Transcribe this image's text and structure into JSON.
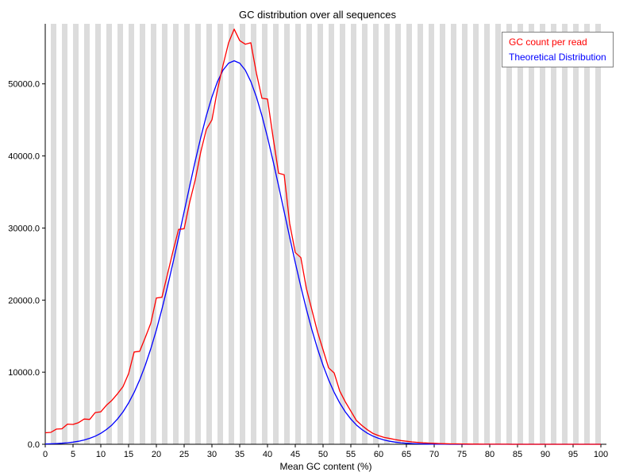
{
  "chart_data": {
    "type": "line",
    "title": "GC distribution over all sequences",
    "xlabel": "Mean GC content (%)",
    "ylabel": "",
    "xlim": [
      0,
      100
    ],
    "ylim": [
      0,
      58333
    ],
    "x_ticks": [
      0,
      5,
      10,
      15,
      20,
      25,
      30,
      35,
      40,
      45,
      50,
      55,
      60,
      65,
      70,
      75,
      80,
      85,
      90,
      95,
      100
    ],
    "y_ticks": [
      0,
      10000,
      20000,
      30000,
      40000,
      50000
    ],
    "y_tick_labels": [
      "0.0",
      "10000.0",
      "20000.0",
      "30000.0",
      "40000.0",
      "50000.0"
    ],
    "grid": "vertical-stripes",
    "stripe_color": "#dcdcdc",
    "axis_color": "#000000",
    "legend_position": "top-right",
    "x": [
      0,
      1,
      2,
      3,
      4,
      5,
      6,
      7,
      8,
      9,
      10,
      11,
      12,
      13,
      14,
      15,
      16,
      17,
      18,
      19,
      20,
      21,
      22,
      23,
      24,
      25,
      26,
      27,
      28,
      29,
      30,
      31,
      32,
      33,
      34,
      35,
      36,
      37,
      38,
      39,
      40,
      41,
      42,
      43,
      44,
      45,
      46,
      47,
      48,
      49,
      50,
      51,
      52,
      53,
      54,
      55,
      56,
      57,
      58,
      59,
      60,
      61,
      62,
      63,
      64,
      65,
      66,
      67,
      68,
      69,
      70,
      71,
      72,
      73,
      74,
      75,
      76,
      77,
      78,
      79,
      80,
      81,
      82,
      83,
      84,
      85,
      86,
      87,
      88,
      89,
      90,
      91,
      92,
      93,
      94,
      95,
      96,
      97,
      98,
      99,
      100
    ],
    "series": [
      {
        "name": "GC count per read",
        "color": "#ff0000",
        "values": [
          1600,
          1650,
          2100,
          2150,
          2800,
          2750,
          3000,
          3500,
          3450,
          4400,
          4500,
          5400,
          6100,
          7000,
          8000,
          9800,
          12800,
          12900,
          14800,
          16800,
          20300,
          20400,
          23600,
          26800,
          29800,
          29900,
          33600,
          36700,
          40600,
          43700,
          45000,
          49200,
          52600,
          55700,
          57600,
          56000,
          55500,
          55700,
          51500,
          48000,
          47900,
          42600,
          37600,
          37400,
          30600,
          26600,
          25900,
          21600,
          18600,
          15600,
          13100,
          10600,
          9900,
          7400,
          5900,
          4600,
          3300,
          2600,
          2000,
          1500,
          1200,
          950,
          800,
          650,
          520,
          420,
          330,
          260,
          200,
          160,
          130,
          100,
          80,
          60,
          50,
          40,
          30,
          25,
          20,
          15,
          12,
          10,
          8,
          6,
          5,
          4,
          3,
          3,
          2,
          2,
          1,
          1,
          1,
          0,
          0,
          0,
          0,
          0,
          0,
          0,
          0
        ]
      },
      {
        "name": "Theoretical Distribution",
        "color": "#0000ff",
        "values": [
          42,
          64,
          96,
          141,
          206,
          296,
          421,
          591,
          820,
          1123,
          1519,
          2031,
          2679,
          3496,
          4505,
          5732,
          7200,
          8934,
          10954,
          13265,
          15864,
          18743,
          21871,
          25206,
          28697,
          32267,
          35838,
          39314,
          42599,
          45592,
          48197,
          50325,
          51902,
          52872,
          53200,
          52872,
          51902,
          50325,
          48197,
          45592,
          42599,
          39314,
          35838,
          32267,
          28697,
          25206,
          21871,
          18743,
          15864,
          13265,
          10954,
          8934,
          7200,
          5732,
          4505,
          3496,
          2679,
          2031,
          1519,
          1123,
          820,
          591,
          421,
          296,
          206,
          141,
          96,
          64,
          42,
          28,
          18,
          11,
          7,
          4,
          3,
          2,
          1,
          1,
          0,
          0,
          0,
          0,
          0,
          0,
          0,
          0,
          0,
          0,
          0,
          0,
          0,
          0,
          0,
          0,
          0,
          0,
          0,
          0,
          0,
          0,
          0
        ]
      }
    ]
  }
}
